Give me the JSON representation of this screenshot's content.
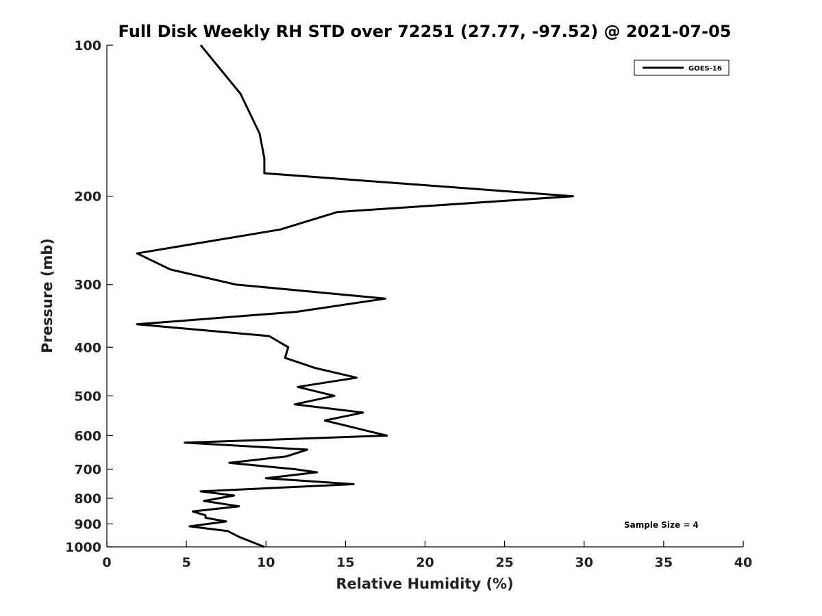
{
  "chart_data": {
    "type": "line",
    "title": "Full Disk Weekly RH STD over 72251 (27.77, -97.52) @ 2021-07-05",
    "xlabel": "Relative Humidity (%)",
    "ylabel": "Pressure (mb)",
    "xlim": [
      0,
      40
    ],
    "ylim": [
      100,
      1000
    ],
    "y_scale": "log",
    "y_reversed": true,
    "x_ticks": [
      0,
      5,
      10,
      15,
      20,
      25,
      30,
      35,
      40
    ],
    "x_tick_labels": [
      "0",
      "5",
      "10",
      "15",
      "20",
      "25",
      "30",
      "35",
      "40"
    ],
    "y_ticks": [
      100,
      200,
      300,
      400,
      500,
      600,
      700,
      800,
      900,
      1000
    ],
    "y_tick_labels": [
      "100",
      "200",
      "300",
      "400",
      "500",
      "600",
      "700",
      "800",
      "900",
      "1000"
    ],
    "grid": false,
    "legend_position": "top-right",
    "series": [
      {
        "name": "GOES-16",
        "color": "#000000",
        "points": [
          [
            5.9,
            100
          ],
          [
            8.4,
            125
          ],
          [
            9.6,
            150
          ],
          [
            9.9,
            168
          ],
          [
            9.9,
            180
          ],
          [
            29.3,
            200
          ],
          [
            14.5,
            215
          ],
          [
            10.9,
            233
          ],
          [
            1.9,
            260
          ],
          [
            4.0,
            280
          ],
          [
            8.1,
            300
          ],
          [
            17.5,
            320
          ],
          [
            11.9,
            340
          ],
          [
            1.9,
            360
          ],
          [
            10.2,
            380
          ],
          [
            11.4,
            400
          ],
          [
            11.2,
            420
          ],
          [
            13.1,
            440
          ],
          [
            15.7,
            460
          ],
          [
            12.0,
            480
          ],
          [
            14.3,
            500
          ],
          [
            11.8,
            520
          ],
          [
            16.1,
            540
          ],
          [
            13.7,
            560
          ],
          [
            17.6,
            600
          ],
          [
            4.9,
            620
          ],
          [
            12.6,
            640
          ],
          [
            11.3,
            660
          ],
          [
            7.7,
            680
          ],
          [
            11.8,
            700
          ],
          [
            13.2,
            710
          ],
          [
            10.0,
            730
          ],
          [
            15.5,
            750
          ],
          [
            5.9,
            775
          ],
          [
            8.0,
            790
          ],
          [
            6.1,
            810
          ],
          [
            8.3,
            830
          ],
          [
            5.4,
            850
          ],
          [
            6.2,
            865
          ],
          [
            6.2,
            875
          ],
          [
            7.5,
            890
          ],
          [
            5.2,
            910
          ],
          [
            7.6,
            930
          ],
          [
            8.3,
            955
          ],
          [
            9.9,
            1000
          ]
        ]
      }
    ],
    "annotations": [
      {
        "text": "Sample Size = 4"
      }
    ]
  }
}
